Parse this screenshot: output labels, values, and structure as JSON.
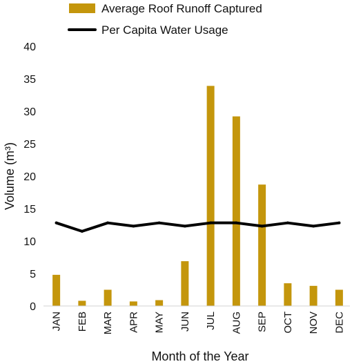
{
  "chart_data": {
    "type": "bar",
    "categories": [
      "JAN",
      "FEB",
      "MAR",
      "APR",
      "MAY",
      "JUN",
      "JUL",
      "AUG",
      "SEP",
      "OCT",
      "NOV",
      "DEC"
    ],
    "series": [
      {
        "name": "Average Roof Runoff Captured",
        "kind": "bar",
        "color": "#c4960c",
        "values": [
          4.8,
          0.8,
          2.5,
          0.7,
          0.9,
          6.9,
          33.9,
          29.2,
          18.7,
          3.5,
          3.1,
          2.5
        ]
      },
      {
        "name": "Per Capita Water Usage",
        "kind": "line",
        "color": "#000000",
        "values": [
          12.8,
          11.5,
          12.8,
          12.3,
          12.8,
          12.3,
          12.8,
          12.8,
          12.3,
          12.8,
          12.3,
          12.8
        ]
      }
    ],
    "xlabel": "Month of the Year",
    "ylabel": "Volume (m³)",
    "ylim": [
      0,
      40
    ],
    "yticks": [
      "0",
      "5",
      "10",
      "15",
      "20",
      "25",
      "30",
      "35",
      "40"
    ],
    "grid": false,
    "legend_position": "top"
  }
}
